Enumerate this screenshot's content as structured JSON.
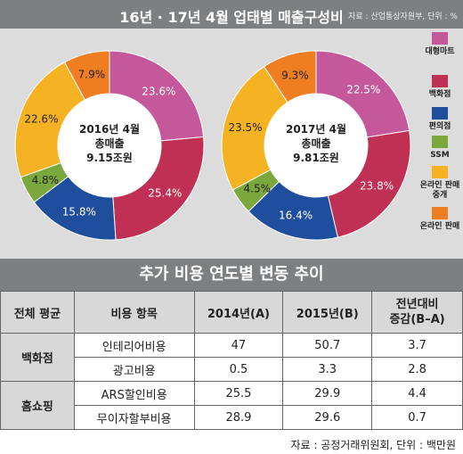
{
  "header": {
    "title": "16년 · 17년 4월 업태별 매출구성비",
    "source": "자료 : 산업통상자원부, 단위 : %"
  },
  "legend": [
    {
      "label": "대형마트",
      "color": "#c4589b"
    },
    {
      "label": "백화점",
      "color": "#c03055"
    },
    {
      "label": "편의점",
      "color": "#1f4e9c"
    },
    {
      "label": "SSM",
      "color": "#7aa83c"
    },
    {
      "label": "온라인 판매중개",
      "color": "#f5b323"
    },
    {
      "label": "온라인 판매",
      "color": "#ef7d22"
    }
  ],
  "chart_data": [
    {
      "type": "pie",
      "variant": "donut",
      "center_text": [
        "2016년 4월",
        "총매출",
        "9.15조원"
      ],
      "categories": [
        "대형마트",
        "백화점",
        "편의점",
        "SSM",
        "온라인 판매중개",
        "온라인 판매"
      ],
      "values": [
        23.6,
        25.4,
        15.8,
        4.8,
        22.6,
        7.9
      ],
      "labels": [
        "23.6%",
        "25.4%",
        "15.8%",
        "4.8%",
        "22.6%",
        "7.9%"
      ]
    },
    {
      "type": "pie",
      "variant": "donut",
      "center_text": [
        "2017년 4월",
        "총매출",
        "9.81조원"
      ],
      "categories": [
        "대형마트",
        "백화점",
        "편의점",
        "SSM",
        "온라인 판매중개",
        "온라인 판매"
      ],
      "values": [
        22.5,
        23.8,
        16.4,
        4.5,
        23.5,
        9.3
      ],
      "labels": [
        "22.5%",
        "23.8%",
        "16.4%",
        "4.5%",
        "23.5%",
        "9.3%"
      ]
    }
  ],
  "table": {
    "title": "추가 비용 연도별 변동 추이",
    "headers": [
      "전체 평균",
      "비용 항목",
      "2014년(A)",
      "2015년(B)",
      "전년대비 증감(B-A)"
    ],
    "groups": [
      {
        "name": "백화점",
        "rows": [
          {
            "item": "인테리어비용",
            "y2014": "47",
            "y2015": "50.7",
            "diff": "3.7"
          },
          {
            "item": "광고비용",
            "y2014": "0.5",
            "y2015": "3.3",
            "diff": "2.8"
          }
        ]
      },
      {
        "name": "홈쇼핑",
        "rows": [
          {
            "item": "ARS할인비용",
            "y2014": "25.5",
            "y2015": "29.9",
            "diff": "4.4"
          },
          {
            "item": "무이자할부비용",
            "y2014": "28.9",
            "y2015": "29.6",
            "diff": "0.7"
          }
        ]
      }
    ],
    "footnote": "자료 : 공정거래위원회, 단위 : 백만원"
  }
}
